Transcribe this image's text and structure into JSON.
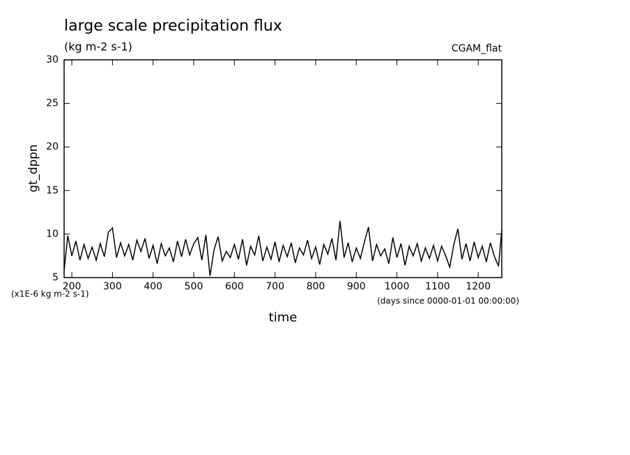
{
  "chart_data": {
    "type": "line",
    "title": "large scale precipitation flux",
    "subtitle": "(kg m-2 s-1)",
    "annotation": "CGAM_flat",
    "y_label": "gt_dppn",
    "y_units": "(x1E-6 kg m-2 s-1)",
    "x_label": "time",
    "x_units": "(days since 0000-01-01 00:00:00)",
    "xlim": [
      181,
      1258
    ],
    "ylim": [
      5,
      30
    ],
    "xticks": [
      200,
      300,
      400,
      500,
      600,
      700,
      800,
      900,
      1000,
      1100,
      1200
    ],
    "yticks": [
      5,
      10,
      15,
      20,
      25,
      30
    ],
    "color": "#000000",
    "x": [
      181,
      190,
      200,
      210,
      220,
      230,
      240,
      250,
      260,
      270,
      280,
      290,
      300,
      310,
      320,
      330,
      340,
      350,
      360,
      370,
      380,
      390,
      400,
      410,
      420,
      430,
      440,
      450,
      460,
      470,
      480,
      490,
      500,
      510,
      520,
      530,
      540,
      550,
      560,
      570,
      580,
      590,
      600,
      610,
      620,
      630,
      640,
      650,
      660,
      670,
      680,
      690,
      700,
      710,
      720,
      730,
      740,
      750,
      760,
      770,
      780,
      790,
      800,
      810,
      820,
      830,
      840,
      850,
      860,
      870,
      880,
      890,
      900,
      910,
      920,
      930,
      940,
      950,
      960,
      970,
      980,
      990,
      1000,
      1010,
      1020,
      1030,
      1040,
      1050,
      1060,
      1070,
      1080,
      1090,
      1100,
      1110,
      1120,
      1130,
      1140,
      1150,
      1160,
      1170,
      1180,
      1190,
      1200,
      1210,
      1220,
      1230,
      1240,
      1250,
      1258
    ],
    "values": [
      5.8,
      9.8,
      7.5,
      9.2,
      7.0,
      8.8,
      7.2,
      8.5,
      7.0,
      8.9,
      7.4,
      10.2,
      10.7,
      7.3,
      9.0,
      7.5,
      8.8,
      7.0,
      9.3,
      8.0,
      9.5,
      7.2,
      8.7,
      6.6,
      8.9,
      7.5,
      8.4,
      6.8,
      9.2,
      7.4,
      9.4,
      7.6,
      8.9,
      9.6,
      7.0,
      9.9,
      5.2,
      8.2,
      9.7,
      6.9,
      8.0,
      7.3,
      8.8,
      7.1,
      9.4,
      6.4,
      8.6,
      7.6,
      9.8,
      6.9,
      8.5,
      7.1,
      9.1,
      6.8,
      8.7,
      7.4,
      9.0,
      6.7,
      8.4,
      7.6,
      9.3,
      7.2,
      8.5,
      6.5,
      8.8,
      7.7,
      9.5,
      7.0,
      11.5,
      7.3,
      9.0,
      6.8,
      8.4,
      7.2,
      9.1,
      10.8,
      6.9,
      8.8,
      7.5,
      8.3,
      6.6,
      9.6,
      7.3,
      8.9,
      6.4,
      8.6,
      7.5,
      8.9,
      6.9,
      8.4,
      7.2,
      8.7,
      6.9,
      8.6,
      7.5,
      6.2,
      8.8,
      10.6,
      7.1,
      8.9,
      6.9,
      9.1,
      7.3,
      8.6,
      6.8,
      9.0,
      7.4,
      6.3,
      10.5
    ]
  }
}
